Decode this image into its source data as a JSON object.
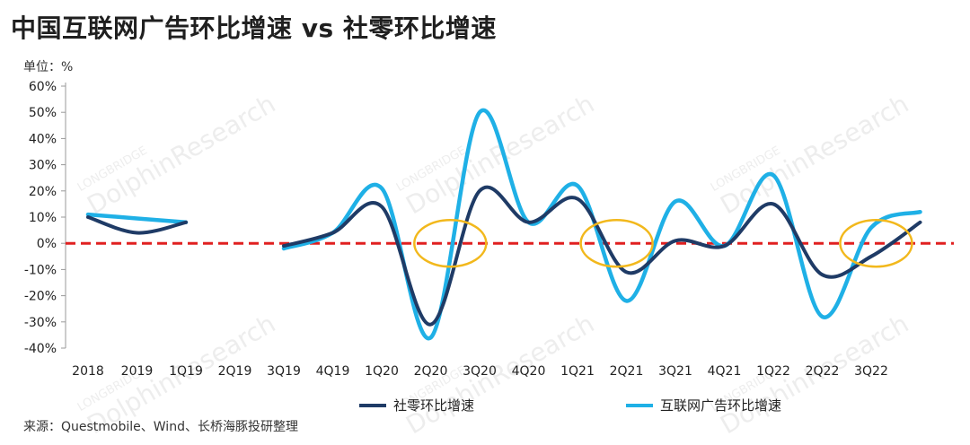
{
  "header": {
    "title": "中国互联网广告环比增速 vs 社零环比增速",
    "unit": "单位：%"
  },
  "footer": {
    "source": "来源：Questmobile、Wind、长桥海豚投研整理"
  },
  "watermark": {
    "top": "LONGBRIDGE",
    "main": "DolphinResearch"
  },
  "colors": {
    "retail": "#1f3b66",
    "ads": "#1fb0e6",
    "zero_line": "#e02020",
    "highlight_circle": "#f2b81c"
  },
  "chart_data": {
    "type": "line",
    "categories": [
      "2018",
      "2019",
      "1Q19",
      "2Q19",
      "3Q19",
      "4Q19",
      "1Q20",
      "2Q20",
      "3Q20",
      "4Q20",
      "1Q21",
      "2Q21",
      "3Q21",
      "4Q21",
      "1Q22",
      "2Q22",
      "3Q22"
    ],
    "y_ticks": [
      "60%",
      "50%",
      "40%",
      "30%",
      "20%",
      "10%",
      "0%",
      "-10%",
      "-20%",
      "-30%",
      "-40%"
    ],
    "ylim": [
      -40,
      60
    ],
    "series": [
      {
        "name": "社零环比增速",
        "color": "#1f3b66",
        "points": [
          {
            "x": 0.0,
            "y": 10
          },
          {
            "x": 1.0,
            "y": 4
          },
          {
            "x": 2.0,
            "y": 8
          },
          {
            "x": 4.0,
            "y": -1
          },
          {
            "x": 5.0,
            "y": 4
          },
          {
            "x": 6.0,
            "y": 14
          },
          {
            "x": 7.0,
            "y": -31
          },
          {
            "x": 8.0,
            "y": 20
          },
          {
            "x": 9.0,
            "y": 8
          },
          {
            "x": 10.0,
            "y": 17
          },
          {
            "x": 11.0,
            "y": -11
          },
          {
            "x": 12.0,
            "y": 1
          },
          {
            "x": 13.0,
            "y": -1
          },
          {
            "x": 14.0,
            "y": 15
          },
          {
            "x": 15.0,
            "y": -12
          },
          {
            "x": 16.0,
            "y": -5
          },
          {
            "x": 17.0,
            "y": 8
          }
        ]
      },
      {
        "name": "互联网广告环比增速",
        "color": "#1fb0e6",
        "points": [
          {
            "x": 0.0,
            "y": 11
          },
          {
            "x": 2.0,
            "y": 8
          },
          {
            "x": 4.0,
            "y": -2
          },
          {
            "x": 5.0,
            "y": 4
          },
          {
            "x": 6.0,
            "y": 21
          },
          {
            "x": 7.0,
            "y": -36
          },
          {
            "x": 8.0,
            "y": 50
          },
          {
            "x": 9.0,
            "y": 8
          },
          {
            "x": 10.0,
            "y": 22
          },
          {
            "x": 11.0,
            "y": -22
          },
          {
            "x": 12.0,
            "y": 16
          },
          {
            "x": 13.0,
            "y": -1
          },
          {
            "x": 14.0,
            "y": 26
          },
          {
            "x": 15.0,
            "y": -28
          },
          {
            "x": 16.0,
            "y": 6
          },
          {
            "x": 17.0,
            "y": 12
          }
        ]
      }
    ],
    "segments": [
      [
        0,
        2
      ],
      [
        2,
        16
      ]
    ],
    "highlight_x": [
      7.4,
      10.8,
      16.1
    ],
    "reference_line_y": 0,
    "legend_position": "bottom"
  }
}
